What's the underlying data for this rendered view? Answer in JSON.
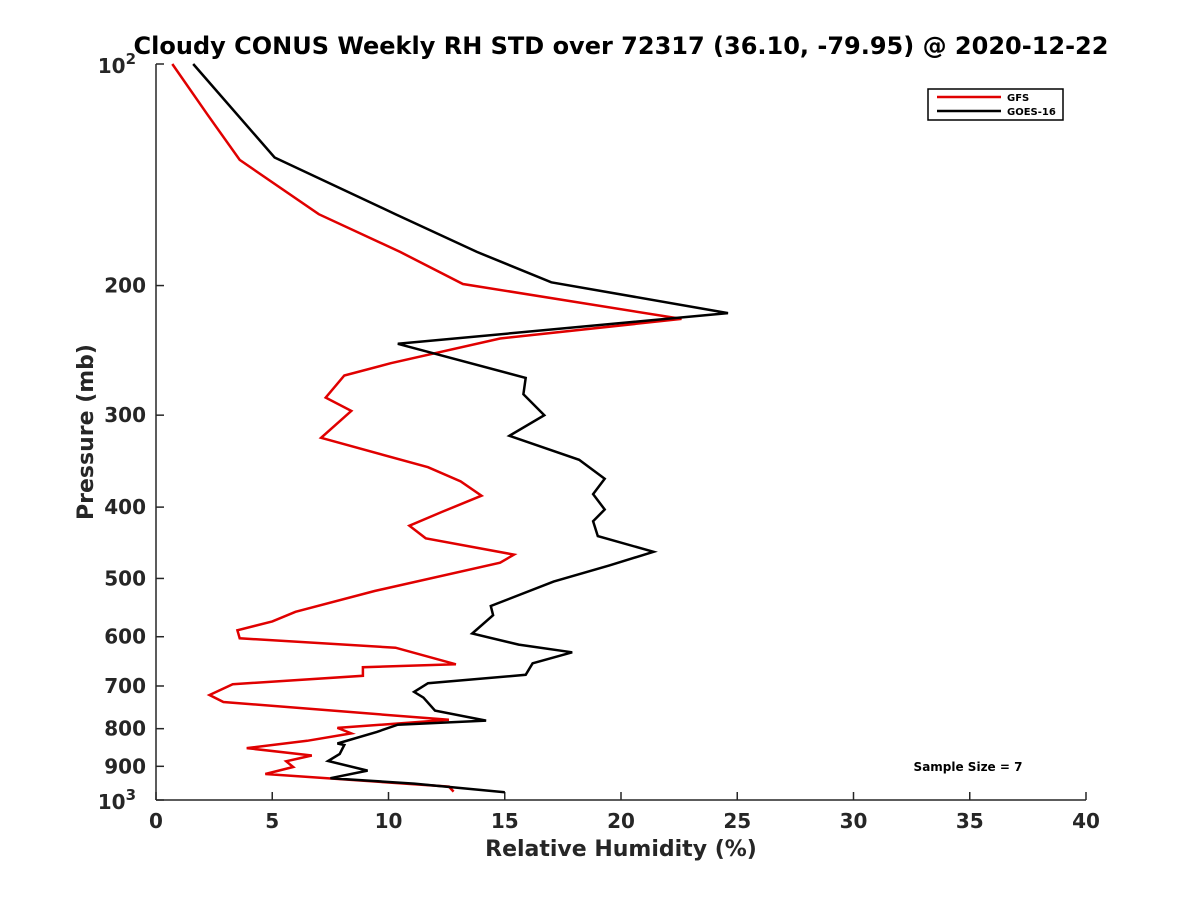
{
  "chart_data": {
    "type": "line",
    "title": "Cloudy CONUS Weekly RH STD over 72317 (36.10, -79.95) @ 2020-12-22",
    "xlabel": "Relative Humidity (%)",
    "ylabel": "Pressure (mb)",
    "xlim": [
      0,
      40
    ],
    "ylim": [
      100,
      1000
    ],
    "yscale": "log",
    "y_reversed": true,
    "grid": false,
    "legend_position": "top-right",
    "x_ticks": [
      "0",
      "5",
      "10",
      "15",
      "20",
      "25",
      "30",
      "35",
      "40"
    ],
    "x_tick_values": [
      0,
      5,
      10,
      15,
      20,
      25,
      30,
      35,
      40
    ],
    "y_ticks": [
      {
        "value": 100,
        "base": "10",
        "exp": "2"
      },
      {
        "value": 200,
        "label": "200"
      },
      {
        "value": 300,
        "label": "300"
      },
      {
        "value": 400,
        "label": "400"
      },
      {
        "value": 500,
        "label": "500"
      },
      {
        "value": 600,
        "label": "600"
      },
      {
        "value": 700,
        "label": "700"
      },
      {
        "value": 800,
        "label": "800"
      },
      {
        "value": 900,
        "label": "900"
      },
      {
        "value": 1000,
        "base": "10",
        "exp": "3"
      }
    ],
    "annotation": "Sample Size = 7",
    "series": [
      {
        "name": "GFS",
        "color": "#e00000",
        "points": [
          [
            0.7,
            100
          ],
          [
            2.2,
            117
          ],
          [
            3.6,
            135
          ],
          [
            7.0,
            160
          ],
          [
            10.5,
            180
          ],
          [
            13.2,
            199
          ],
          [
            22.6,
            222
          ],
          [
            14.8,
            236
          ],
          [
            10.1,
            255
          ],
          [
            8.1,
            265
          ],
          [
            7.3,
            284
          ],
          [
            8.4,
            296
          ],
          [
            7.1,
            322
          ],
          [
            11.7,
            353
          ],
          [
            13.1,
            369
          ],
          [
            14.0,
            386
          ],
          [
            12.3,
            406
          ],
          [
            10.9,
            424
          ],
          [
            11.6,
            441
          ],
          [
            15.4,
            464
          ],
          [
            14.8,
            476
          ],
          [
            9.4,
            520
          ],
          [
            6.0,
            555
          ],
          [
            5.0,
            572
          ],
          [
            3.5,
            588
          ],
          [
            3.6,
            603
          ],
          [
            10.3,
            621
          ],
          [
            12.9,
            654
          ],
          [
            8.9,
            660
          ],
          [
            8.9,
            678
          ],
          [
            3.3,
            696
          ],
          [
            2.3,
            720
          ],
          [
            2.9,
            736
          ],
          [
            8.5,
            760
          ],
          [
            12.6,
            778
          ],
          [
            7.8,
            798
          ],
          [
            8.4,
            812
          ],
          [
            6.5,
            831
          ],
          [
            3.9,
            850
          ],
          [
            6.7,
            870
          ],
          [
            5.6,
            886
          ],
          [
            5.9,
            902
          ],
          [
            4.7,
            922
          ],
          [
            12.6,
            959
          ],
          [
            12.8,
            974
          ]
        ]
      },
      {
        "name": "GOES-16",
        "color": "#000000",
        "points": [
          [
            1.6,
            100
          ],
          [
            5.1,
            134
          ],
          [
            10.3,
            160
          ],
          [
            13.8,
            180
          ],
          [
            17.0,
            198
          ],
          [
            24.6,
            218
          ],
          [
            10.4,
            240
          ],
          [
            15.9,
            267
          ],
          [
            15.8,
            281
          ],
          [
            16.7,
            300
          ],
          [
            15.2,
            320
          ],
          [
            18.2,
            345
          ],
          [
            19.3,
            366
          ],
          [
            18.8,
            384
          ],
          [
            19.3,
            403
          ],
          [
            18.8,
            418
          ],
          [
            19.0,
            438
          ],
          [
            21.4,
            460
          ],
          [
            19.5,
            480
          ],
          [
            17.1,
            505
          ],
          [
            14.4,
            545
          ],
          [
            14.5,
            561
          ],
          [
            13.6,
            594
          ],
          [
            15.6,
            615
          ],
          [
            17.9,
            630
          ],
          [
            16.2,
            652
          ],
          [
            15.9,
            676
          ],
          [
            11.7,
            694
          ],
          [
            11.1,
            713
          ],
          [
            11.5,
            726
          ],
          [
            12.0,
            756
          ],
          [
            14.2,
            780
          ],
          [
            10.4,
            790
          ],
          [
            9.5,
            808
          ],
          [
            7.8,
            838
          ],
          [
            8.1,
            842
          ],
          [
            7.9,
            866
          ],
          [
            7.4,
            885
          ],
          [
            9.1,
            912
          ],
          [
            7.5,
            934
          ],
          [
            11.1,
            950
          ],
          [
            15.0,
            976
          ]
        ]
      }
    ]
  }
}
